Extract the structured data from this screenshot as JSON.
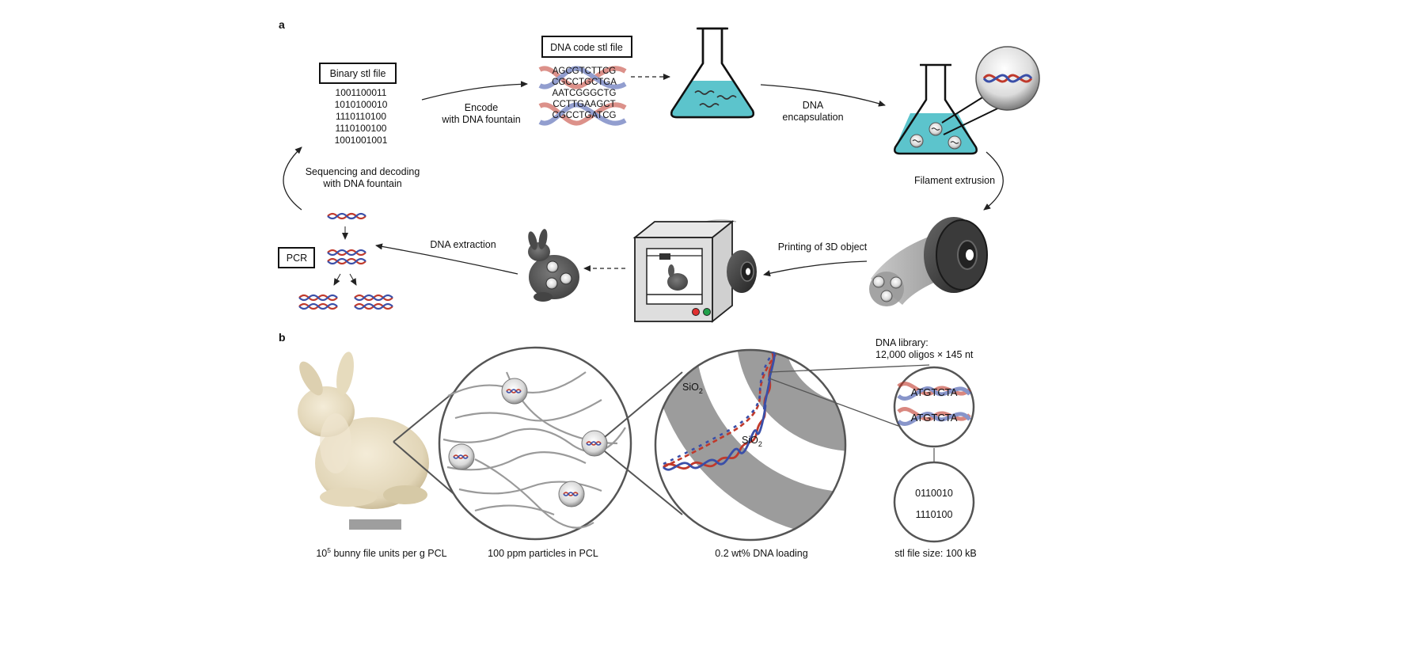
{
  "panels": {
    "a": {
      "label": "a",
      "binary_box": "Binary stl file",
      "binary_lines": [
        "1001100011",
        "1010100010",
        "1110110100",
        "1110100100",
        "1001001001"
      ],
      "dna_box": "DNA code stl file",
      "dna_lines": [
        "AGCGTCTTCG",
        "CGCCTGCTGA",
        "AATCGGGCTG",
        "CCTTGAAGCT",
        "CGCCTGATCG"
      ],
      "encode": [
        "Encode",
        "with DNA fountain"
      ],
      "encapsulation": [
        "DNA",
        "encapsulation"
      ],
      "filament": "Filament extrusion",
      "printing": "Printing of 3D object",
      "extraction": "DNA extraction",
      "pcr": "PCR",
      "sequencing": [
        "Sequencing and decoding",
        "with DNA fountain"
      ]
    },
    "b": {
      "label": "b",
      "caption_bunny_base": "10",
      "caption_bunny_sup": "5",
      "caption_bunny_rest": " bunny file units per g PCL",
      "caption_particles": "100 ppm particles in PCL",
      "caption_loading": "0.2 wt% DNA loading",
      "caption_size": "stl file size: 100 kB",
      "library": [
        "DNA library:",
        "12,000 oligos × 145 nt"
      ],
      "sio2_base": "SiO",
      "sio2_sub": "2",
      "oligo_seq": [
        "ATGTCTA",
        "ATGTCTA"
      ],
      "bits": [
        "0110010",
        "1110100"
      ]
    }
  },
  "colors": {
    "liquid": "#5cc4cc",
    "dna_red": "#c0392b",
    "dna_blue": "#3a4fa8",
    "gray": "#9a9a9a",
    "dark_gray": "#555555"
  }
}
